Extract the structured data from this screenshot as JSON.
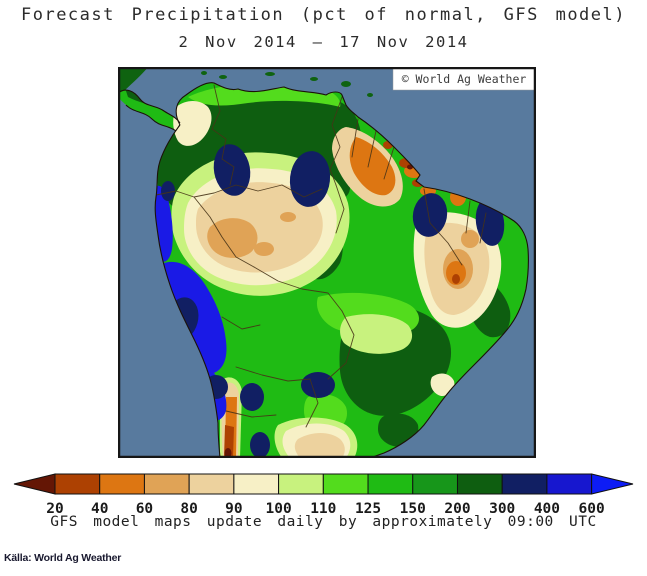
{
  "title": "Forecast Precipitation (pct of normal, GFS model)",
  "subtitle": "2 Nov 2014 – 17 Nov 2014",
  "map": {
    "region": "South America",
    "watermark": "© World Ag Weather",
    "ocean_color": "#587a9e",
    "frame_color": "#161616"
  },
  "colorbar": {
    "values": [
      20,
      40,
      60,
      80,
      90,
      100,
      110,
      125,
      150,
      200,
      300,
      400,
      600
    ],
    "segment_colors": [
      "#ad4102",
      "#dd7612",
      "#e0a356",
      "#edd29e",
      "#f7f0c6",
      "#c8f27e",
      "#53dc1d",
      "#1fbb14",
      "#17961a",
      "#0e5e10",
      "#111f63",
      "#1717cf"
    ],
    "arrow_left_color": "#641605",
    "arrow_right_color": "#0d1cf5",
    "label_color": "#1a1a1a"
  },
  "caption": "GFS model maps update daily by approximately 09:00 UTC",
  "source": "Källa: World Ag Weather"
}
